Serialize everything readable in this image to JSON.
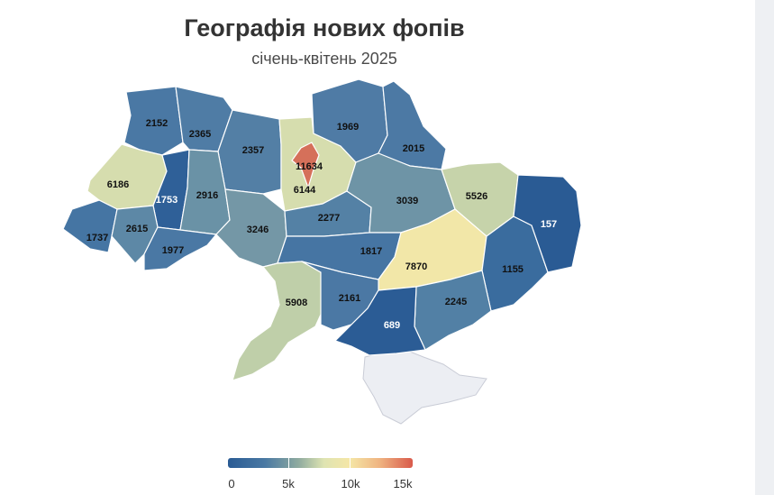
{
  "title": "Географія нових фопів",
  "subtitle": "січень-квітень 2025",
  "legend": {
    "ticks": [
      "0",
      "5k",
      "10k",
      "15k"
    ]
  },
  "regions": [
    {
      "id": "volyn",
      "value": "2152"
    },
    {
      "id": "rivne",
      "value": "2365"
    },
    {
      "id": "zhytomyr",
      "value": "2357"
    },
    {
      "id": "kyiv-city",
      "value": "11634"
    },
    {
      "id": "kyiv-oblast",
      "value": "6144"
    },
    {
      "id": "chernihiv",
      "value": "1969"
    },
    {
      "id": "sumy",
      "value": "2015"
    },
    {
      "id": "lviv",
      "value": "6186"
    },
    {
      "id": "ternopil",
      "value": "1753"
    },
    {
      "id": "khmelnytskyi",
      "value": "2916"
    },
    {
      "id": "vinnytsia",
      "value": "3246"
    },
    {
      "id": "cherkasy",
      "value": "2277"
    },
    {
      "id": "poltava",
      "value": "3039"
    },
    {
      "id": "kharkiv",
      "value": "5526"
    },
    {
      "id": "zakarpattia",
      "value": "1737"
    },
    {
      "id": "ivano-frankivsk",
      "value": "2615"
    },
    {
      "id": "chernivtsi",
      "value": "1977"
    },
    {
      "id": "kirovohrad",
      "value": "1817"
    },
    {
      "id": "dnipropetrovsk",
      "value": "7870"
    },
    {
      "id": "donetsk",
      "value": "1155"
    },
    {
      "id": "luhansk",
      "value": "157"
    },
    {
      "id": "odesa",
      "value": "5908"
    },
    {
      "id": "mykolaiv",
      "value": "2161"
    },
    {
      "id": "zaporizhzhia",
      "value": "2245"
    },
    {
      "id": "kherson",
      "value": "689"
    }
  ]
}
